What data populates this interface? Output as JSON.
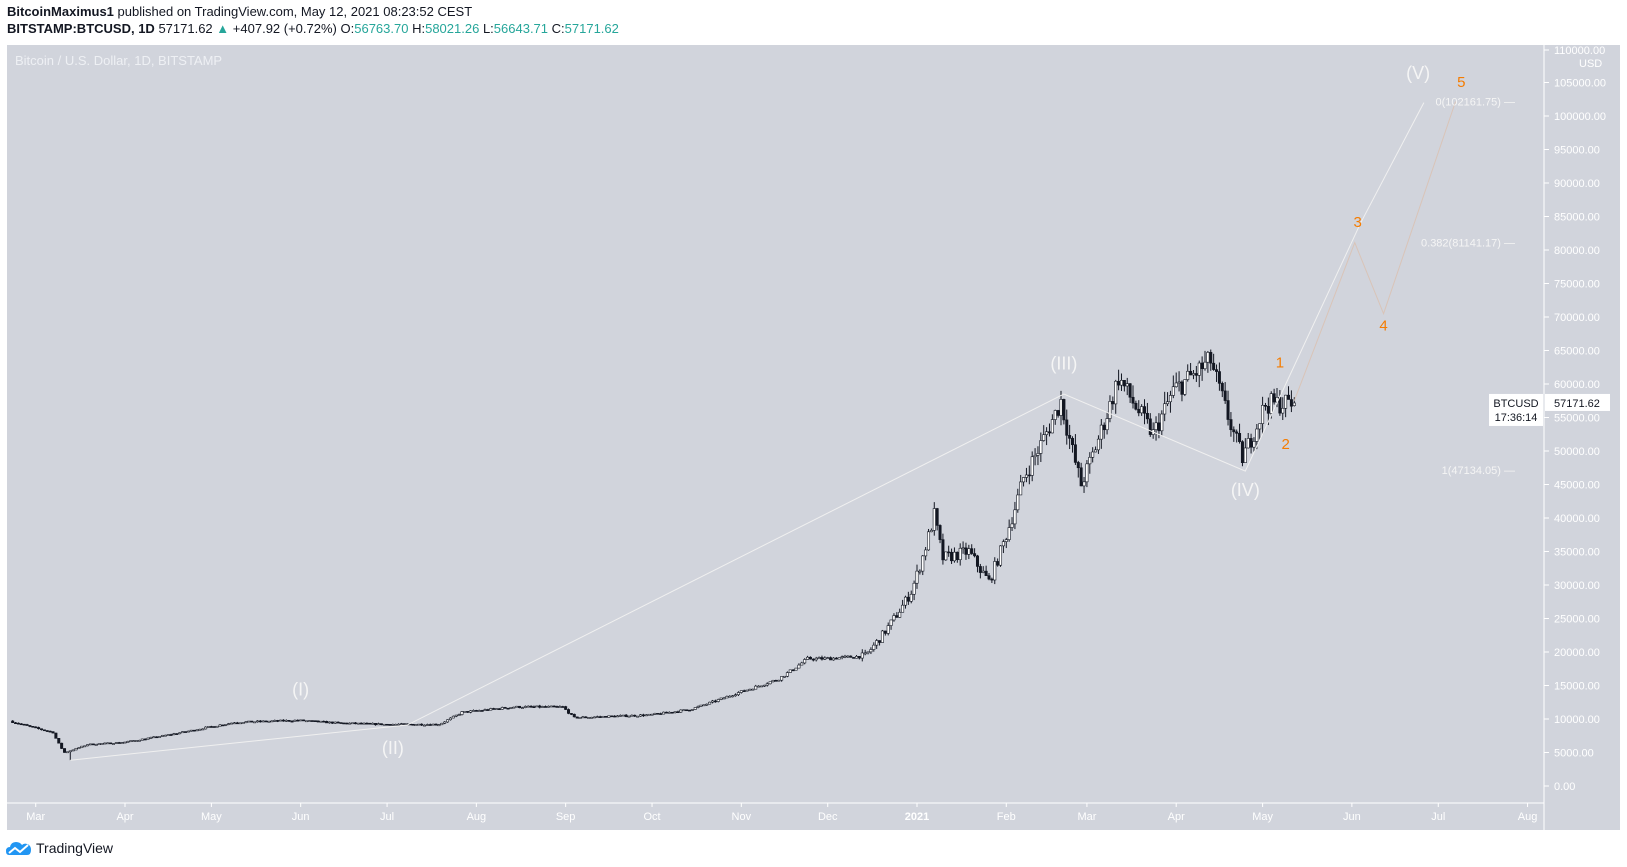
{
  "header": {
    "author": "BitcoinMaximus1",
    "published": "published on TradingView.com, May 12, 2021 08:23:52 CEST",
    "symbol": "BITSTAMP:BTCUSD, 1D",
    "last": "57171.62",
    "change": "+407.92 (+0.72%)",
    "o_label": "O:",
    "o": "56763.70",
    "h_label": "H:",
    "h": "58021.26",
    "l_label": "L:",
    "l": "56643.71",
    "c_label": "C:",
    "c": "57171.62",
    "up_icon": "triangle-up-icon"
  },
  "watermark": "Bitcoin / U.S. Dollar, 1D, BITSTAMP",
  "price_tag": {
    "symbol": "BTCUSD",
    "price": "57171.62",
    "countdown": "17:36:14"
  },
  "footer": {
    "brand": "TradingView"
  },
  "colors": {
    "background": "#d1d4dc",
    "up_body": "#ffffff",
    "down_body": "#131722",
    "wave_white": "#f0f0f0",
    "wave_orange": "#d9c4b8",
    "label_orange": "#f57c00"
  },
  "chart_data": {
    "type": "candlestick",
    "title": "Bitcoin / U.S. Dollar, 1D, BITSTAMP",
    "yunit": "USD",
    "ylim": [
      -2000,
      110000
    ],
    "y_ticks": [
      "0.00",
      "5000.00",
      "10000.00",
      "15000.00",
      "20000.00",
      "25000.00",
      "30000.00",
      "35000.00",
      "40000.00",
      "45000.00",
      "50000.00",
      "55000.00",
      "60000.00",
      "65000.00",
      "70000.00",
      "75000.00",
      "80000.00",
      "85000.00",
      "90000.00",
      "95000.00",
      "100000.00",
      "105000.00",
      "110000.00"
    ],
    "x_ticks": [
      {
        "label": "Mar",
        "date": "2020-03-01"
      },
      {
        "label": "Apr",
        "date": "2020-04-01"
      },
      {
        "label": "May",
        "date": "2020-05-01"
      },
      {
        "label": "Jun",
        "date": "2020-06-01"
      },
      {
        "label": "Jul",
        "date": "2020-07-01"
      },
      {
        "label": "Aug",
        "date": "2020-08-01"
      },
      {
        "label": "Sep",
        "date": "2020-09-01"
      },
      {
        "label": "Oct",
        "date": "2020-10-01"
      },
      {
        "label": "Nov",
        "date": "2020-11-01"
      },
      {
        "label": "Dec",
        "date": "2020-12-01"
      },
      {
        "label": "2021",
        "date": "2021-01-01"
      },
      {
        "label": "Feb",
        "date": "2021-02-01"
      },
      {
        "label": "Mar",
        "date": "2021-03-01"
      },
      {
        "label": "Apr",
        "date": "2021-04-01"
      },
      {
        "label": "May",
        "date": "2021-05-01"
      },
      {
        "label": "Jun",
        "date": "2021-06-01"
      },
      {
        "label": "Jul",
        "date": "2021-07-01"
      },
      {
        "label": "Aug",
        "date": "2021-08-01"
      }
    ],
    "xlim": [
      "2020-02-22",
      "2021-08-10"
    ],
    "approx_closes": [
      [
        "2020-02-22",
        9700
      ],
      [
        "2020-03-08",
        8000
      ],
      [
        "2020-03-12",
        5000
      ],
      [
        "2020-03-20",
        6200
      ],
      [
        "2020-04-01",
        6500
      ],
      [
        "2020-04-30",
        8700
      ],
      [
        "2020-05-10",
        9500
      ],
      [
        "2020-06-01",
        9800
      ],
      [
        "2020-06-15",
        9400
      ],
      [
        "2020-07-01",
        9200
      ],
      [
        "2020-07-20",
        9200
      ],
      [
        "2020-07-28",
        11000
      ],
      [
        "2020-08-15",
        11800
      ],
      [
        "2020-09-01",
        11800
      ],
      [
        "2020-09-05",
        10200
      ],
      [
        "2020-10-01",
        10600
      ],
      [
        "2020-10-15",
        11400
      ],
      [
        "2020-10-31",
        13800
      ],
      [
        "2020-11-15",
        16000
      ],
      [
        "2020-11-25",
        19000
      ],
      [
        "2020-12-01",
        19000
      ],
      [
        "2020-12-15",
        19400
      ],
      [
        "2020-12-31",
        29000
      ],
      [
        "2021-01-08",
        40500
      ],
      [
        "2021-01-11",
        34000
      ],
      [
        "2021-01-20",
        35000
      ],
      [
        "2021-01-27",
        30500
      ],
      [
        "2021-02-08",
        46000
      ],
      [
        "2021-02-21",
        57500
      ],
      [
        "2021-02-28",
        45000
      ],
      [
        "2021-03-13",
        61000
      ],
      [
        "2021-03-25",
        52500
      ],
      [
        "2021-04-01",
        59000
      ],
      [
        "2021-04-14",
        63500
      ],
      [
        "2021-04-25",
        49000
      ],
      [
        "2021-05-03",
        57000
      ],
      [
        "2021-05-11",
        57171.62
      ]
    ],
    "last_candle": {
      "date": "2021-05-12",
      "open": 56763.7,
      "high": 58021.26,
      "low": 56643.71,
      "close": 57171.62
    },
    "wave_white": [
      [
        "2020-03-13",
        3850
      ],
      [
        "2020-07-08",
        9100
      ],
      [
        "2021-02-21",
        58500
      ],
      [
        "2021-04-25",
        47000
      ],
      [
        "2021-06-04",
        84000
      ],
      [
        "2021-06-26",
        102000
      ]
    ],
    "wave_orange": [
      [
        "2021-05-12",
        57500
      ],
      [
        "2021-06-02",
        81100
      ],
      [
        "2021-06-12",
        70500
      ],
      [
        "2021-07-07",
        102161.75
      ]
    ],
    "wave_labels": [
      {
        "text": "(I)",
        "date": "2020-06-01",
        "price": 13500,
        "color": "white"
      },
      {
        "text": "(II)",
        "date": "2020-07-03",
        "price": 4800,
        "color": "white"
      },
      {
        "text": "(III)",
        "date": "2021-02-21",
        "price": 62200,
        "color": "white"
      },
      {
        "text": "(IV)",
        "date": "2021-04-25",
        "price": 43300,
        "color": "white"
      },
      {
        "text": "(V)",
        "date": "2021-06-24",
        "price": 105500,
        "color": "white"
      },
      {
        "text": "1",
        "date": "2021-05-07",
        "price": 62500,
        "color": "orange"
      },
      {
        "text": "2",
        "date": "2021-05-09",
        "price": 50300,
        "color": "orange"
      },
      {
        "text": "3",
        "date": "2021-06-03",
        "price": 83400,
        "color": "orange"
      },
      {
        "text": "4",
        "date": "2021-06-12",
        "price": 68000,
        "color": "orange"
      },
      {
        "text": "5",
        "date": "2021-07-09",
        "price": 104300,
        "color": "orange"
      }
    ],
    "fib_levels": [
      {
        "text": "0(102161.75) —",
        "price": 102161.75
      },
      {
        "text": "0.382(81141.17) —",
        "price": 81141.17
      },
      {
        "text": "1(47134.05) —",
        "price": 47134.05
      }
    ],
    "grid": false
  }
}
